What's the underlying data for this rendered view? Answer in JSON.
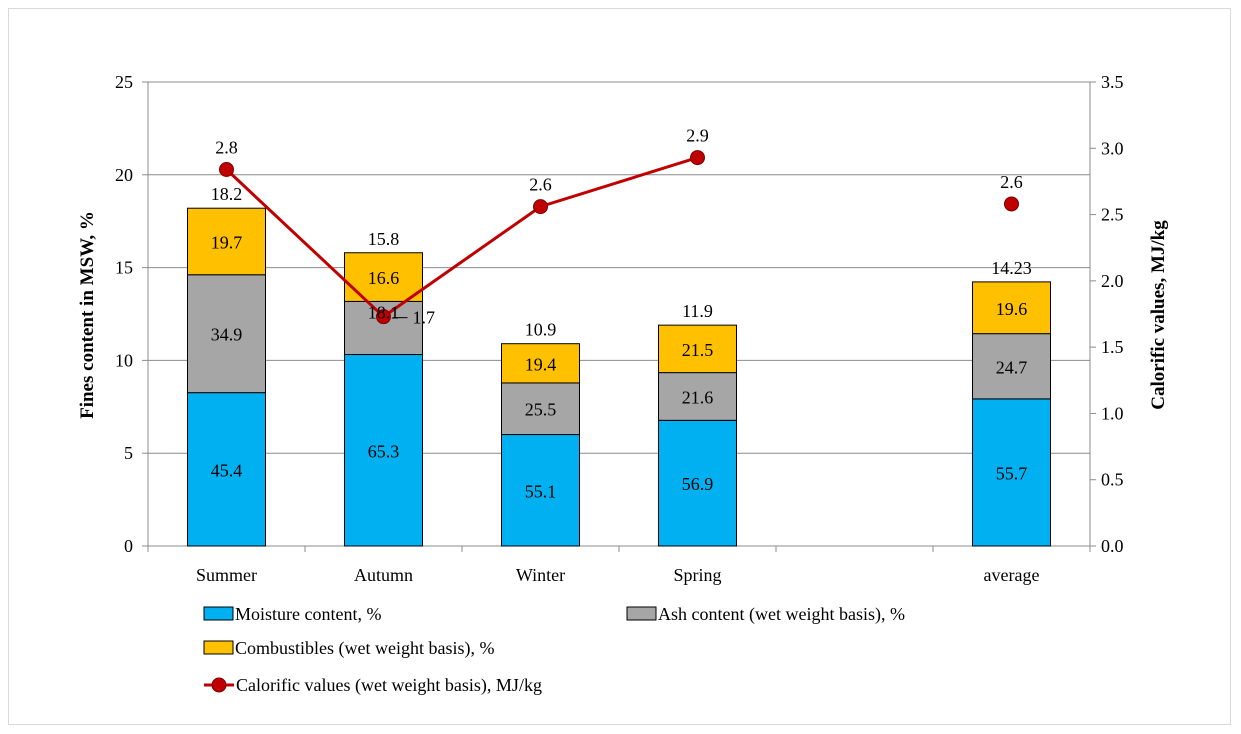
{
  "chart_data": {
    "type": "bar",
    "categories": [
      "Summer",
      "Autumn",
      "Winter",
      "Spring",
      "",
      "average"
    ],
    "ylabel": "Fines content in MSW, %",
    "y2label": "Calorific values, MJ/kg",
    "ylim": [
      0,
      25
    ],
    "yticks": [
      "0",
      "5",
      "10",
      "15",
      "20",
      "25"
    ],
    "y2lim": [
      0,
      3.5
    ],
    "y2ticks": [
      "0.0",
      "0.5",
      "1.0",
      "1.5",
      "2.0",
      "2.5",
      "3.0",
      "3.5"
    ],
    "grid": true,
    "legend_position": "bottom",
    "bar_totals": [
      18.2,
      15.8,
      10.9,
      11.9,
      null,
      14.23
    ],
    "bar_total_labels": [
      "18.2",
      "15.8",
      "10.9",
      "11.9",
      "",
      "14.23"
    ],
    "series": [
      {
        "name": "Moisture content, %",
        "kind": "stacked-bar",
        "color": "#00b0f0",
        "percent_of_total": [
          45.4,
          65.3,
          55.1,
          56.9,
          null,
          55.7
        ],
        "labels": [
          "45.4",
          "65.3",
          "55.1",
          "56.9",
          "",
          "55.7"
        ]
      },
      {
        "name": "Ash content (wet weight basis), %",
        "kind": "stacked-bar",
        "color": "#a6a6a6",
        "percent_of_total": [
          34.9,
          18.1,
          25.5,
          21.6,
          null,
          24.7
        ],
        "labels": [
          "34.9",
          "18.1",
          "25.5",
          "21.6",
          "",
          "24.7"
        ]
      },
      {
        "name": "Combustibles (wet weight basis), %",
        "kind": "stacked-bar",
        "color": "#ffc000",
        "percent_of_total": [
          19.7,
          16.6,
          19.4,
          21.5,
          null,
          19.6
        ],
        "labels": [
          "19.7",
          "16.6",
          "19.4",
          "21.5",
          "",
          "19.6"
        ]
      },
      {
        "name": "Calorific values (wet weight basis), MJ/kg",
        "kind": "line",
        "axis": "right",
        "color": "#c00000",
        "values": [
          2.84,
          1.73,
          2.56,
          2.93,
          null,
          2.58
        ],
        "labels": [
          "2.8",
          "1.7",
          "2.6",
          "2.9",
          "",
          "2.6"
        ]
      }
    ]
  }
}
